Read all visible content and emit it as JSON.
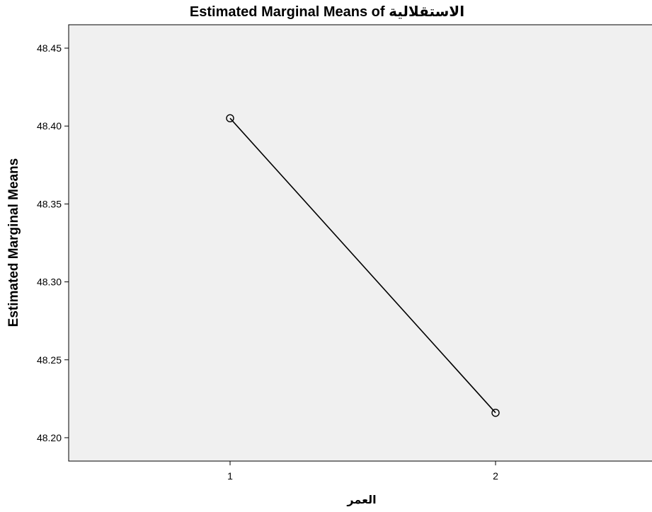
{
  "chart_data": {
    "type": "line",
    "title": "Estimated Marginal Means of الاستقلالية",
    "xlabel": "العمر",
    "ylabel": "Estimated Marginal Means",
    "categories": [
      "1",
      "2"
    ],
    "series": [
      {
        "values": [
          48.405,
          48.216
        ]
      }
    ],
    "ylim": [
      48.185,
      48.465
    ],
    "yticks": [
      "48.20",
      "48.25",
      "48.30",
      "48.35",
      "48.40",
      "48.45"
    ],
    "grid": false,
    "colors": {
      "plot_background": "#f0f0f0",
      "line": "#000000"
    }
  }
}
